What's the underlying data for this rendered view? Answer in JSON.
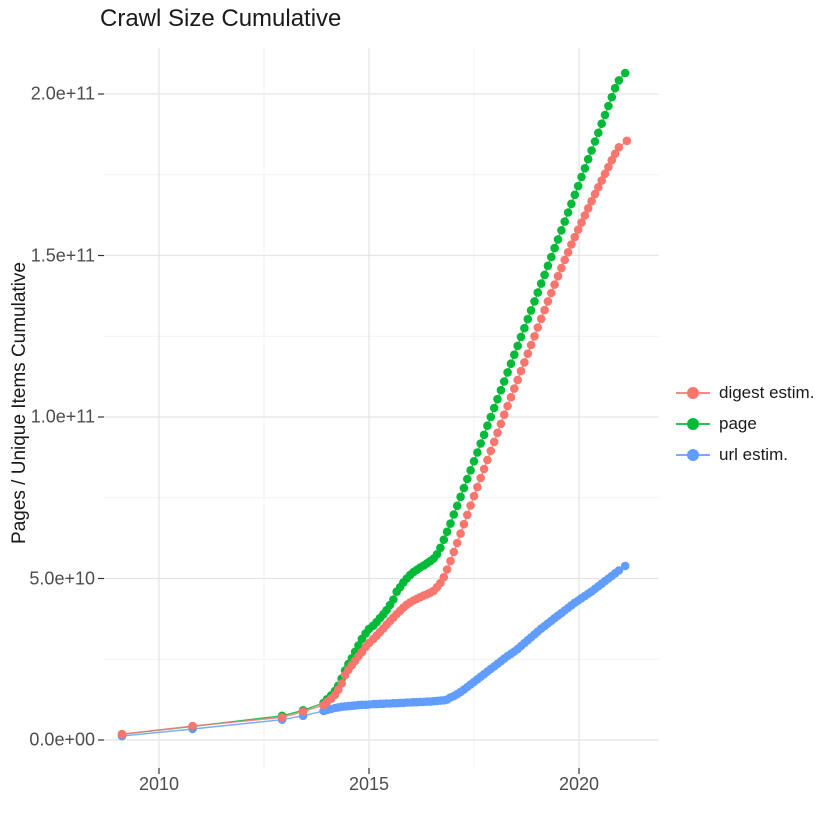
{
  "chart_data": {
    "type": "scatter",
    "title": "Crawl Size Cumulative",
    "xlabel": "",
    "ylabel": "Pages / Unique Items Cumulative",
    "value_unit": "1e9 (billions of pages / items)",
    "grid": true,
    "legend_position": "right",
    "xlim": [
      2008.7,
      2021.9
    ],
    "ylim_e9": [
      -9,
      214
    ],
    "x_ticks": [
      {
        "v": 2010,
        "label": "2010"
      },
      {
        "v": 2015,
        "label": "2015"
      },
      {
        "v": 2020,
        "label": "2020"
      }
    ],
    "x_minor": [
      2012.5,
      2017.5
    ],
    "y_ticks": [
      {
        "v": 0,
        "label": "0.0e+00"
      },
      {
        "v": 50,
        "label": "5.0e+10"
      },
      {
        "v": 100,
        "label": "1.0e+11"
      },
      {
        "v": 150,
        "label": "1.5e+11"
      },
      {
        "v": 200,
        "label": "2.0e+11"
      }
    ],
    "y_minor": [
      25,
      75,
      125,
      175
    ],
    "series": [
      {
        "name": "url estim.",
        "color": "#619CFF",
        "points": [
          [
            2009.12,
            1.2
          ],
          [
            2010.8,
            3.4
          ],
          [
            2012.93,
            6.3
          ],
          [
            2013.43,
            7.5
          ],
          [
            2013.92,
            9.0
          ],
          [
            2014.0,
            9.3
          ],
          [
            2014.1,
            9.6
          ],
          [
            2014.19,
            9.9
          ],
          [
            2014.27,
            10.1
          ],
          [
            2014.35,
            10.3
          ],
          [
            2014.43,
            10.4
          ],
          [
            2014.51,
            10.5
          ],
          [
            2014.59,
            10.6
          ],
          [
            2014.67,
            10.7
          ],
          [
            2014.75,
            10.8
          ],
          [
            2014.83,
            10.9
          ],
          [
            2014.92,
            10.9
          ],
          [
            2015.0,
            11.0
          ],
          [
            2015.1,
            11.1
          ],
          [
            2015.18,
            11.1
          ],
          [
            2015.26,
            11.2
          ],
          [
            2015.34,
            11.2
          ],
          [
            2015.42,
            11.3
          ],
          [
            2015.5,
            11.3
          ],
          [
            2015.58,
            11.4
          ],
          [
            2015.66,
            11.4
          ],
          [
            2015.74,
            11.5
          ],
          [
            2015.82,
            11.5
          ],
          [
            2015.9,
            11.6
          ],
          [
            2015.98,
            11.6
          ],
          [
            2016.06,
            11.7
          ],
          [
            2016.14,
            11.7
          ],
          [
            2016.22,
            11.8
          ],
          [
            2016.3,
            11.8
          ],
          [
            2016.38,
            11.9
          ],
          [
            2016.46,
            11.9
          ],
          [
            2016.54,
            12.0
          ],
          [
            2016.62,
            12.1
          ],
          [
            2016.7,
            12.2
          ],
          [
            2016.78,
            12.3
          ],
          [
            2016.86,
            12.5
          ],
          [
            2016.94,
            13.2
          ],
          [
            2017.02,
            13.6
          ],
          [
            2017.1,
            14.2
          ],
          [
            2017.18,
            14.9
          ],
          [
            2017.26,
            15.6
          ],
          [
            2017.34,
            16.4
          ],
          [
            2017.42,
            17.2
          ],
          [
            2017.5,
            18.0
          ],
          [
            2017.58,
            18.8
          ],
          [
            2017.66,
            19.6
          ],
          [
            2017.74,
            20.4
          ],
          [
            2017.82,
            21.2
          ],
          [
            2017.9,
            22.0
          ],
          [
            2017.98,
            22.8
          ],
          [
            2018.06,
            23.6
          ],
          [
            2018.14,
            24.4
          ],
          [
            2018.22,
            25.2
          ],
          [
            2018.3,
            26.0
          ],
          [
            2018.38,
            26.7
          ],
          [
            2018.46,
            27.4
          ],
          [
            2018.54,
            28.2
          ],
          [
            2018.62,
            29.1
          ],
          [
            2018.7,
            30.0
          ],
          [
            2018.78,
            30.9
          ],
          [
            2018.86,
            31.8
          ],
          [
            2018.94,
            32.7
          ],
          [
            2019.02,
            33.6
          ],
          [
            2019.1,
            34.5
          ],
          [
            2019.18,
            35.3
          ],
          [
            2019.26,
            36.1
          ],
          [
            2019.34,
            36.9
          ],
          [
            2019.42,
            37.7
          ],
          [
            2019.5,
            38.5
          ],
          [
            2019.58,
            39.3
          ],
          [
            2019.66,
            40.1
          ],
          [
            2019.74,
            40.9
          ],
          [
            2019.82,
            41.7
          ],
          [
            2019.9,
            42.5
          ],
          [
            2019.98,
            43.2
          ],
          [
            2020.06,
            43.9
          ],
          [
            2020.14,
            44.6
          ],
          [
            2020.22,
            45.3
          ],
          [
            2020.3,
            46.0
          ],
          [
            2020.38,
            46.8
          ],
          [
            2020.46,
            47.6
          ],
          [
            2020.54,
            48.4
          ],
          [
            2020.62,
            49.2
          ],
          [
            2020.7,
            50.0
          ],
          [
            2020.78,
            50.8
          ],
          [
            2020.86,
            51.6
          ],
          [
            2020.95,
            52.5
          ],
          [
            2021.1,
            53.9
          ]
        ]
      },
      {
        "name": "page",
        "color": "#00BA38",
        "points": [
          [
            2009.12,
            1.8
          ],
          [
            2010.8,
            4.2
          ],
          [
            2012.93,
            7.5
          ],
          [
            2013.43,
            9.2
          ],
          [
            2013.92,
            11.5
          ],
          [
            2014.0,
            12.6
          ],
          [
            2014.1,
            13.8
          ],
          [
            2014.19,
            15.2
          ],
          [
            2014.27,
            16.8
          ],
          [
            2014.35,
            19.0
          ],
          [
            2014.43,
            21.5
          ],
          [
            2014.51,
            23.5
          ],
          [
            2014.59,
            25.3
          ],
          [
            2014.67,
            27.3
          ],
          [
            2014.75,
            29.3
          ],
          [
            2014.83,
            31.3
          ],
          [
            2014.92,
            33.0
          ],
          [
            2015.0,
            34.4
          ],
          [
            2015.1,
            35.4
          ],
          [
            2015.18,
            36.5
          ],
          [
            2015.26,
            37.7
          ],
          [
            2015.34,
            38.9
          ],
          [
            2015.42,
            40.2
          ],
          [
            2015.5,
            41.8
          ],
          [
            2015.58,
            43.5
          ],
          [
            2015.66,
            45.9
          ],
          [
            2015.74,
            47.3
          ],
          [
            2015.82,
            48.8
          ],
          [
            2015.9,
            50.0
          ],
          [
            2015.98,
            51.1
          ],
          [
            2016.06,
            52.0
          ],
          [
            2016.14,
            52.7
          ],
          [
            2016.22,
            53.4
          ],
          [
            2016.3,
            54.0
          ],
          [
            2016.38,
            54.7
          ],
          [
            2016.46,
            55.4
          ],
          [
            2016.54,
            56.2
          ],
          [
            2016.62,
            57.5
          ],
          [
            2016.7,
            59.5
          ],
          [
            2016.78,
            62.0
          ],
          [
            2016.86,
            64.5
          ],
          [
            2016.94,
            67.0
          ],
          [
            2017.02,
            69.8
          ],
          [
            2017.1,
            72.5
          ],
          [
            2017.18,
            75.3
          ],
          [
            2017.26,
            78.0
          ],
          [
            2017.34,
            80.8
          ],
          [
            2017.42,
            83.5
          ],
          [
            2017.5,
            86.3
          ],
          [
            2017.58,
            89.0
          ],
          [
            2017.66,
            91.8
          ],
          [
            2017.74,
            94.5
          ],
          [
            2017.82,
            97.3
          ],
          [
            2017.9,
            100.0
          ],
          [
            2017.98,
            102.8
          ],
          [
            2018.06,
            105.5
          ],
          [
            2018.14,
            108.3
          ],
          [
            2018.22,
            111.0
          ],
          [
            2018.3,
            113.8
          ],
          [
            2018.38,
            116.5
          ],
          [
            2018.46,
            119.3
          ],
          [
            2018.54,
            122.0
          ],
          [
            2018.62,
            124.8
          ],
          [
            2018.7,
            127.5
          ],
          [
            2018.78,
            130.3
          ],
          [
            2018.86,
            133.0
          ],
          [
            2018.94,
            135.8
          ],
          [
            2019.02,
            138.5
          ],
          [
            2019.1,
            141.3
          ],
          [
            2019.18,
            144.0
          ],
          [
            2019.26,
            146.8
          ],
          [
            2019.34,
            149.5
          ],
          [
            2019.42,
            152.3
          ],
          [
            2019.5,
            155.0
          ],
          [
            2019.58,
            157.8
          ],
          [
            2019.66,
            160.5
          ],
          [
            2019.74,
            163.3
          ],
          [
            2019.82,
            166.0
          ],
          [
            2019.9,
            168.8
          ],
          [
            2019.98,
            171.5
          ],
          [
            2020.06,
            174.3
          ],
          [
            2020.14,
            177.0
          ],
          [
            2020.22,
            179.8
          ],
          [
            2020.3,
            182.5
          ],
          [
            2020.38,
            185.3
          ],
          [
            2020.46,
            188.0
          ],
          [
            2020.54,
            190.8
          ],
          [
            2020.62,
            193.5
          ],
          [
            2020.7,
            196.3
          ],
          [
            2020.78,
            199.0
          ],
          [
            2020.86,
            201.8
          ],
          [
            2020.95,
            204.2
          ],
          [
            2021.1,
            206.5
          ]
        ]
      },
      {
        "name": "digest estim.",
        "color": "#F8766D",
        "points": [
          [
            2009.12,
            1.8
          ],
          [
            2010.8,
            4.3
          ],
          [
            2012.93,
            7.0
          ],
          [
            2013.43,
            8.8
          ],
          [
            2013.92,
            10.8
          ],
          [
            2014.0,
            11.8
          ],
          [
            2014.1,
            12.8
          ],
          [
            2014.19,
            14.0
          ],
          [
            2014.27,
            15.5
          ],
          [
            2014.35,
            17.5
          ],
          [
            2014.43,
            20.1
          ],
          [
            2014.51,
            21.7
          ],
          [
            2014.59,
            23.2
          ],
          [
            2014.67,
            24.5
          ],
          [
            2014.75,
            25.9
          ],
          [
            2014.83,
            27.2
          ],
          [
            2014.92,
            28.8
          ],
          [
            2015.0,
            30.0
          ],
          [
            2015.1,
            31.2
          ],
          [
            2015.18,
            32.3
          ],
          [
            2015.26,
            33.4
          ],
          [
            2015.34,
            34.5
          ],
          [
            2015.42,
            35.7
          ],
          [
            2015.5,
            36.8
          ],
          [
            2015.58,
            37.9
          ],
          [
            2015.66,
            39.0
          ],
          [
            2015.74,
            40.0
          ],
          [
            2015.82,
            41.0
          ],
          [
            2015.9,
            41.9
          ],
          [
            2015.98,
            42.6
          ],
          [
            2016.06,
            43.2
          ],
          [
            2016.14,
            43.7
          ],
          [
            2016.22,
            44.2
          ],
          [
            2016.3,
            44.7
          ],
          [
            2016.38,
            45.1
          ],
          [
            2016.46,
            45.6
          ],
          [
            2016.54,
            46.2
          ],
          [
            2016.62,
            47.3
          ],
          [
            2016.7,
            48.6
          ],
          [
            2016.78,
            50.4
          ],
          [
            2016.86,
            52.8
          ],
          [
            2016.94,
            55.4
          ],
          [
            2017.02,
            58.2
          ],
          [
            2017.1,
            61.0
          ],
          [
            2017.18,
            63.9
          ],
          [
            2017.26,
            66.8
          ],
          [
            2017.34,
            69.7
          ],
          [
            2017.42,
            72.6
          ],
          [
            2017.5,
            75.5
          ],
          [
            2017.58,
            78.3
          ],
          [
            2017.66,
            81.1
          ],
          [
            2017.74,
            83.9
          ],
          [
            2017.82,
            86.7
          ],
          [
            2017.9,
            89.5
          ],
          [
            2017.98,
            92.3
          ],
          [
            2018.06,
            95.1
          ],
          [
            2018.14,
            97.9
          ],
          [
            2018.22,
            100.7
          ],
          [
            2018.3,
            103.4
          ],
          [
            2018.38,
            106.1
          ],
          [
            2018.46,
            108.8
          ],
          [
            2018.54,
            111.5
          ],
          [
            2018.62,
            114.2
          ],
          [
            2018.7,
            116.9
          ],
          [
            2018.78,
            119.6
          ],
          [
            2018.86,
            122.3
          ],
          [
            2018.94,
            125.0
          ],
          [
            2019.02,
            127.7
          ],
          [
            2019.1,
            130.4
          ],
          [
            2019.18,
            133.1
          ],
          [
            2019.26,
            135.8
          ],
          [
            2019.34,
            138.4
          ],
          [
            2019.42,
            141.0
          ],
          [
            2019.5,
            143.6
          ],
          [
            2019.58,
            146.1
          ],
          [
            2019.66,
            148.6
          ],
          [
            2019.74,
            151.0
          ],
          [
            2019.82,
            153.4
          ],
          [
            2019.9,
            155.7
          ],
          [
            2019.98,
            158.0
          ],
          [
            2020.06,
            160.2
          ],
          [
            2020.14,
            162.4
          ],
          [
            2020.22,
            164.6
          ],
          [
            2020.3,
            166.8
          ],
          [
            2020.38,
            169.0
          ],
          [
            2020.46,
            171.1
          ],
          [
            2020.54,
            173.2
          ],
          [
            2020.62,
            175.3
          ],
          [
            2020.7,
            177.4
          ],
          [
            2020.78,
            179.5
          ],
          [
            2020.86,
            181.5
          ],
          [
            2020.95,
            183.5
          ],
          [
            2021.14,
            185.5
          ]
        ]
      }
    ],
    "legend_order": [
      "digest estim.",
      "page",
      "url estim."
    ]
  }
}
